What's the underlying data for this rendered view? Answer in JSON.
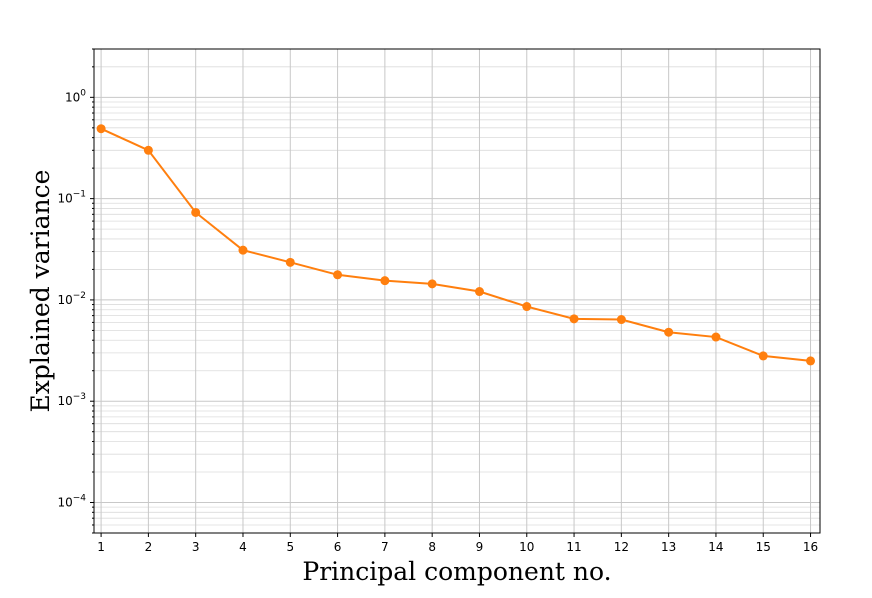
{
  "chart_data": {
    "type": "line",
    "xlabel": "Principal component no.",
    "ylabel": "Explained variance",
    "x": [
      1,
      2,
      3,
      4,
      5,
      6,
      7,
      8,
      9,
      10,
      11,
      12,
      13,
      14,
      15,
      16
    ],
    "series": [
      {
        "values": [
          0.49,
          0.3,
          0.073,
          0.031,
          0.0235,
          0.0177,
          0.0155,
          0.0144,
          0.0121,
          0.0086,
          0.0065,
          0.0064,
          0.0048,
          0.0043,
          0.0028,
          0.0025
        ],
        "color": "#ff7f0e",
        "marker": "circle"
      }
    ],
    "xlim": [
      0.85,
      16.2
    ],
    "ylim": [
      5e-05,
      3
    ],
    "yscale": "log",
    "xticks": [
      "1",
      "2",
      "3",
      "4",
      "5",
      "6",
      "7",
      "8",
      "9",
      "10",
      "11",
      "12",
      "13",
      "14",
      "15",
      "16"
    ],
    "yticks": [
      {
        "value": 0.0001,
        "base": "10",
        "exp": "−4"
      },
      {
        "value": 0.001,
        "base": "10",
        "exp": "−3"
      },
      {
        "value": 0.01,
        "base": "10",
        "exp": "−2"
      },
      {
        "value": 0.1,
        "base": "10",
        "exp": "−1"
      },
      {
        "value": 1,
        "base": "10",
        "exp": "0"
      }
    ],
    "grid": true,
    "legend": "none"
  }
}
